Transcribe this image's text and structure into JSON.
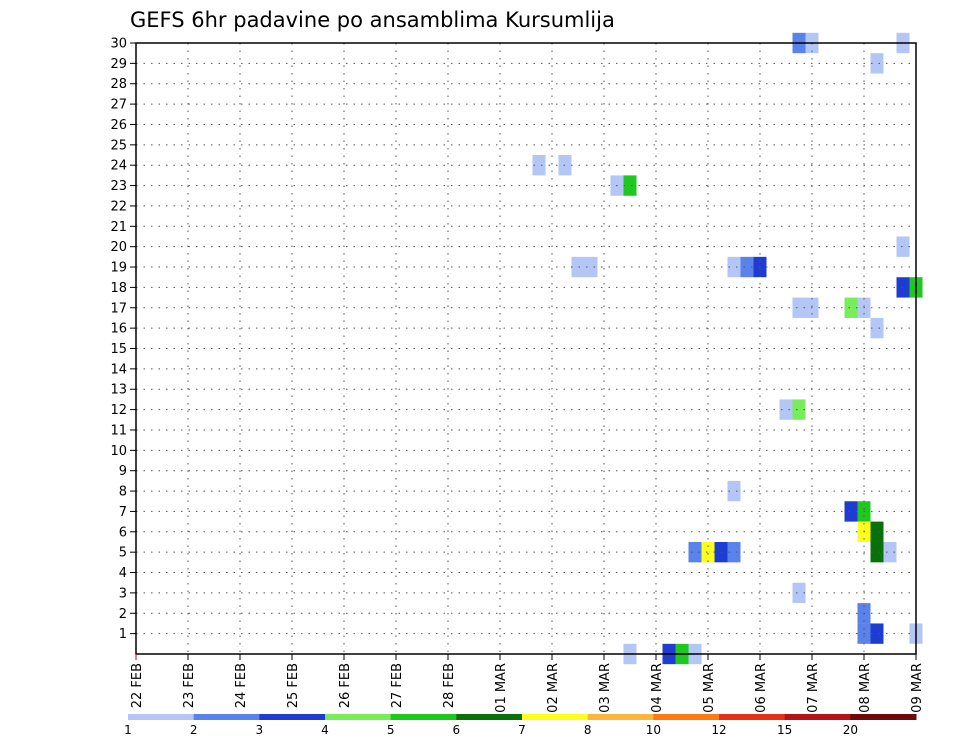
{
  "chart_data": {
    "type": "heatmap",
    "title": "GEFS 6hr padavine po ansamblima Kursumlija",
    "x_tick_labels": [
      "22 FEB",
      "23 FEB",
      "24 FEB",
      "25 FEB",
      "26 FEB",
      "27 FEB",
      "28 FEB",
      "01 MAR",
      "02 MAR",
      "03 MAR",
      "04 MAR",
      "05 MAR",
      "06 MAR",
      "07 MAR",
      "08 MAR",
      "09 MAR"
    ],
    "y_tick_labels": [
      "1",
      "2",
      "3",
      "4",
      "5",
      "6",
      "7",
      "8",
      "9",
      "10",
      "11",
      "12",
      "13",
      "14",
      "15",
      "16",
      "17",
      "18",
      "19",
      "20",
      "21",
      "22",
      "23",
      "24",
      "25",
      "26",
      "27",
      "28",
      "29",
      "30"
    ],
    "x_range_days": [
      0,
      15
    ],
    "y_range": [
      0,
      30
    ],
    "grid": true,
    "time_step_days": 0.25,
    "legend": {
      "placement": "bottom",
      "labels": [
        "1",
        "2",
        "3",
        "4",
        "5",
        "6",
        "7",
        "8",
        "10",
        "12",
        "15",
        "20"
      ],
      "colors": [
        "#b4c6f5",
        "#5a82eb",
        "#1e3cd2",
        "#78ec5a",
        "#1ec81e",
        "#0a700a",
        "#ffff1e",
        "#ffb43c",
        "#ff7814",
        "#e63214",
        "#b41414",
        "#6e0a0a"
      ]
    },
    "cells": [
      {
        "t": 12.75,
        "member": 30,
        "color": "#5a82eb"
      },
      {
        "t": 13.0,
        "member": 30,
        "color": "#b4c6f5"
      },
      {
        "t": 14.75,
        "member": 30,
        "color": "#b4c6f5"
      },
      {
        "t": 14.25,
        "member": 29,
        "color": "#b4c6f5"
      },
      {
        "t": 7.75,
        "member": 24,
        "color": "#b4c6f5"
      },
      {
        "t": 8.25,
        "member": 24,
        "color": "#b4c6f5"
      },
      {
        "t": 9.25,
        "member": 23,
        "color": "#b4c6f5"
      },
      {
        "t": 9.5,
        "member": 23,
        "color": "#1ec81e"
      },
      {
        "t": 14.75,
        "member": 20,
        "color": "#b4c6f5"
      },
      {
        "t": 8.5,
        "member": 19,
        "color": "#b4c6f5"
      },
      {
        "t": 8.75,
        "member": 19,
        "color": "#b4c6f5"
      },
      {
        "t": 11.5,
        "member": 19,
        "color": "#b4c6f5"
      },
      {
        "t": 11.75,
        "member": 19,
        "color": "#5a82eb"
      },
      {
        "t": 12.0,
        "member": 19,
        "color": "#1e3cd2"
      },
      {
        "t": 14.75,
        "member": 18,
        "color": "#1e3cd2"
      },
      {
        "t": 15.0,
        "member": 18,
        "color": "#1ec81e"
      },
      {
        "t": 12.75,
        "member": 17,
        "color": "#b4c6f5"
      },
      {
        "t": 13.0,
        "member": 17,
        "color": "#b4c6f5"
      },
      {
        "t": 13.75,
        "member": 17,
        "color": "#78ec5a"
      },
      {
        "t": 14.0,
        "member": 17,
        "color": "#b4c6f5"
      },
      {
        "t": 14.25,
        "member": 16,
        "color": "#b4c6f5"
      },
      {
        "t": 12.5,
        "member": 12,
        "color": "#b4c6f5"
      },
      {
        "t": 12.75,
        "member": 12,
        "color": "#78ec5a"
      },
      {
        "t": 11.5,
        "member": 8,
        "color": "#b4c6f5"
      },
      {
        "t": 13.75,
        "member": 7,
        "color": "#1e3cd2"
      },
      {
        "t": 14.0,
        "member": 7,
        "color": "#1ec81e"
      },
      {
        "t": 14.0,
        "member": 6,
        "color": "#ffff1e"
      },
      {
        "t": 14.25,
        "member": 6,
        "color": "#0a700a"
      },
      {
        "t": 10.75,
        "member": 5,
        "color": "#5a82eb"
      },
      {
        "t": 11.0,
        "member": 5,
        "color": "#ffff1e"
      },
      {
        "t": 11.25,
        "member": 5,
        "color": "#1e3cd2"
      },
      {
        "t": 11.5,
        "member": 5,
        "color": "#5a82eb"
      },
      {
        "t": 14.25,
        "member": 5,
        "color": "#0a700a"
      },
      {
        "t": 14.5,
        "member": 5,
        "color": "#b4c6f5"
      },
      {
        "t": 12.75,
        "member": 3,
        "color": "#b4c6f5"
      },
      {
        "t": 14.0,
        "member": 2,
        "color": "#5a82eb"
      },
      {
        "t": 14.0,
        "member": 1,
        "color": "#5a82eb"
      },
      {
        "t": 14.25,
        "member": 1,
        "color": "#1e3cd2"
      },
      {
        "t": 15.0,
        "member": 1,
        "color": "#b4c6f5"
      },
      {
        "t": 9.5,
        "member": 0,
        "color": "#b4c6f5"
      },
      {
        "t": 10.25,
        "member": 0,
        "color": "#1e3cd2"
      },
      {
        "t": 10.5,
        "member": 0,
        "color": "#1ec81e"
      },
      {
        "t": 10.75,
        "member": 0,
        "color": "#b4c6f5"
      }
    ]
  }
}
